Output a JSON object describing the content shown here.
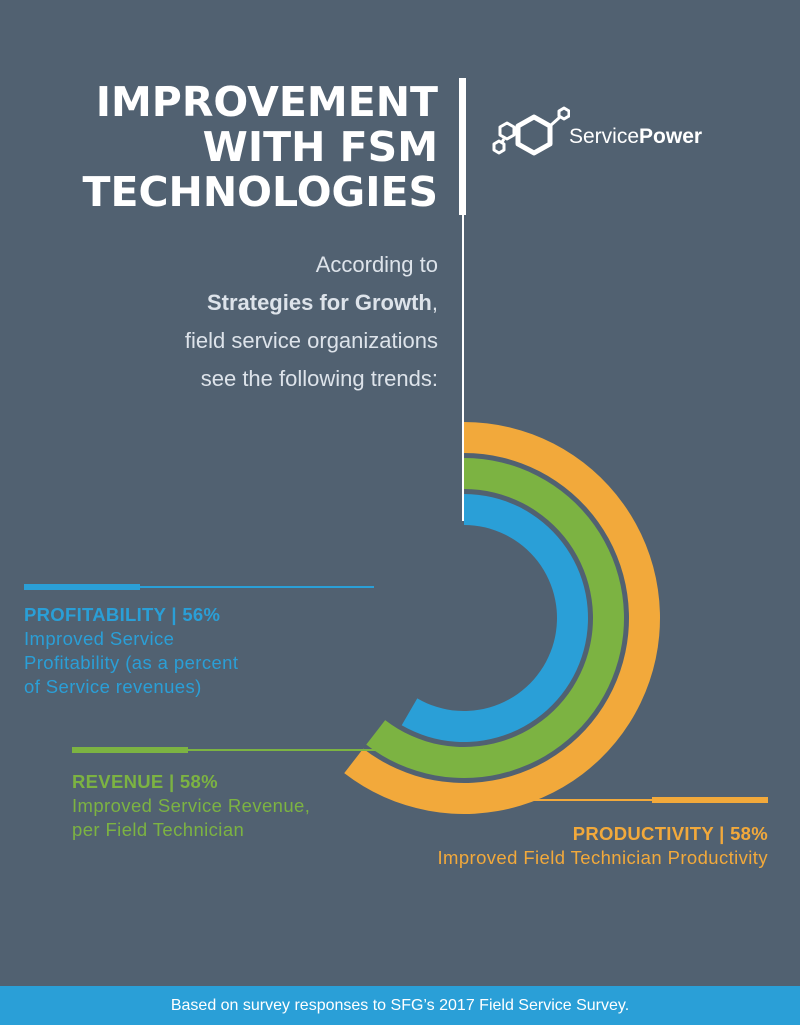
{
  "title": {
    "line1": "IMPROVEMENT",
    "line2": "WITH FSM",
    "line3": "TECHNOLOGIES"
  },
  "logo": {
    "name_light": "Service",
    "name_bold": "Power"
  },
  "intro": {
    "line1": "According to",
    "line2_bold": "Strategies for Growth",
    "line2_rest": ",",
    "line3": "field service organizations",
    "line4": "see the following trends:"
  },
  "metrics": {
    "profitability": {
      "heading": "PROFITABILITY  |  56%",
      "desc1": "Improved Service",
      "desc2": "Profitability (as a percent",
      "desc3": "of Service revenues)"
    },
    "revenue": {
      "heading": "REVENUE  |  58%",
      "desc1": "Improved Service Revenue,",
      "desc2": "per Field Technician"
    },
    "productivity": {
      "heading": "PRODUCTIVITY  |  58%",
      "desc1": "Improved Field Technician Productivity"
    }
  },
  "footer": "Based on survey responses to SFG’s 2017 Field Service Survey.",
  "colors": {
    "background": "#516171",
    "profitability": "#2a9fd7",
    "revenue": "#7cb342",
    "productivity": "#f2a93b",
    "footer": "#2a9fd7"
  },
  "chart_data": {
    "type": "radial-bar",
    "categories": [
      "PROFITABILITY",
      "REVENUE",
      "PRODUCTIVITY"
    ],
    "values": [
      56,
      58,
      58
    ],
    "unit": "%"
  }
}
